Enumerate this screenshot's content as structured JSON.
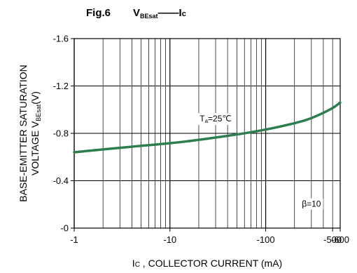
{
  "figure": {
    "label": "Fig.6",
    "title_main": "V",
    "title_sub": "BEsat",
    "title_dash": "——",
    "title_right_main": "I",
    "title_right_sub": "c"
  },
  "chart_data": {
    "type": "line",
    "x_scale": "log",
    "xlim": [
      -1,
      -600
    ],
    "ylim": [
      0,
      -1.6
    ],
    "x_ticks": [
      {
        "value": -1,
        "label": "-1"
      },
      {
        "value": -10,
        "label": "-10"
      },
      {
        "value": -100,
        "label": "-100"
      },
      {
        "value": -500,
        "label": "-500"
      },
      {
        "value": -600,
        "label": "-600"
      }
    ],
    "y_ticks": [
      {
        "value": 0,
        "label": "-0"
      },
      {
        "value": -0.4,
        "label": "-0.4"
      },
      {
        "value": -0.8,
        "label": "-0.8"
      },
      {
        "value": -1.2,
        "label": "-1.2"
      },
      {
        "value": -1.6,
        "label": "-1.6"
      }
    ],
    "xlabel_prefix": "I",
    "xlabel_sub": "C",
    "xlabel_rest": " , COLLECTOR CURRENT (mA)",
    "ylabel_line1": "BASE-EMITTER SATURATION",
    "ylabel_line2_main": "VOLTAGE V",
    "ylabel_line2_sub": "BEsat",
    "ylabel_line2_rest": "(V)",
    "grid": true,
    "series": [
      {
        "color": "#2e7d4f",
        "x": [
          -1,
          -2,
          -3,
          -5,
          -10,
          -20,
          -30,
          -50,
          -100,
          -200,
          -300,
          -500,
          -600
        ],
        "y": [
          -0.64,
          -0.665,
          -0.678,
          -0.695,
          -0.715,
          -0.745,
          -0.765,
          -0.79,
          -0.83,
          -0.885,
          -0.925,
          -1.01,
          -1.06
        ]
      }
    ],
    "annotations": [
      {
        "main": "T",
        "sub": "a",
        "rest": "=25℃",
        "x": -30,
        "y": -0.9
      },
      {
        "main": "β=10",
        "sub": "",
        "rest": "",
        "x": -300,
        "y": -0.18
      }
    ]
  }
}
